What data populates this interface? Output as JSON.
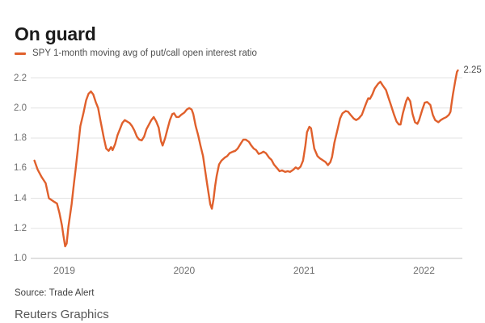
{
  "header": {
    "title": "On guard"
  },
  "legend": {
    "label": "SPY 1-month moving avg of put/call open interest ratio",
    "series_color": "#e0602c"
  },
  "footer": {
    "source": "Source: Trade Alert",
    "credit": "Reuters Graphics"
  },
  "colors": {
    "line": "#e0602c",
    "gridline": "#e3e3e3",
    "baseline": "#c2c2c2",
    "title_text": "#1b1b1b",
    "tick_text": "#6f6f6f"
  },
  "chart_data": {
    "type": "line",
    "title": "On guard",
    "xlabel": "",
    "ylabel": "",
    "grid": "horizontal",
    "legend_position": "top-left",
    "x_range": [
      2018.72,
      2022.32
    ],
    "x_ticks": [
      2019,
      2020,
      2021,
      2022
    ],
    "x_tick_labels": [
      "2019",
      "2020",
      "2021",
      "2022"
    ],
    "y_ticks": [
      1.0,
      1.2,
      1.4,
      1.6,
      1.8,
      2.0,
      2.2
    ],
    "y_tick_labels": [
      "1.0",
      "1.2",
      "1.4",
      "1.6",
      "1.8",
      "2.0",
      "2.2"
    ],
    "y_axis_min": 1.0,
    "y_axis_max": 2.2,
    "end_label": "2.25",
    "last_value": 2.25,
    "series": [
      {
        "name": "SPY 1-month moving avg of put/call open interest ratio",
        "color": "#e0602c",
        "points": [
          [
            2018.751,
            1.65
          ],
          [
            2018.778,
            1.59
          ],
          [
            2018.812,
            1.54
          ],
          [
            2018.845,
            1.5
          ],
          [
            2018.872,
            1.4
          ],
          [
            2018.899,
            1.385
          ],
          [
            2018.919,
            1.375
          ],
          [
            2018.939,
            1.365
          ],
          [
            2018.96,
            1.3
          ],
          [
            2018.98,
            1.22
          ],
          [
            2018.993,
            1.15
          ],
          [
            2019.007,
            1.08
          ],
          [
            2019.02,
            1.1
          ],
          [
            2019.034,
            1.21
          ],
          [
            2019.061,
            1.36
          ],
          [
            2019.081,
            1.5
          ],
          [
            2019.094,
            1.59
          ],
          [
            2019.114,
            1.73
          ],
          [
            2019.134,
            1.88
          ],
          [
            2019.161,
            1.97
          ],
          [
            2019.182,
            2.05
          ],
          [
            2019.202,
            2.095
          ],
          [
            2019.222,
            2.11
          ],
          [
            2019.242,
            2.09
          ],
          [
            2019.262,
            2.04
          ],
          [
            2019.282,
            2.0
          ],
          [
            2019.303,
            1.91
          ],
          [
            2019.33,
            1.8
          ],
          [
            2019.35,
            1.73
          ],
          [
            2019.37,
            1.715
          ],
          [
            2019.39,
            1.74
          ],
          [
            2019.403,
            1.72
          ],
          [
            2019.424,
            1.76
          ],
          [
            2019.444,
            1.82
          ],
          [
            2019.464,
            1.86
          ],
          [
            2019.484,
            1.9
          ],
          [
            2019.504,
            1.92
          ],
          [
            2019.524,
            1.91
          ],
          [
            2019.545,
            1.9
          ],
          [
            2019.565,
            1.88
          ],
          [
            2019.585,
            1.85
          ],
          [
            2019.605,
            1.81
          ],
          [
            2019.625,
            1.79
          ],
          [
            2019.646,
            1.785
          ],
          [
            2019.666,
            1.81
          ],
          [
            2019.686,
            1.86
          ],
          [
            2019.706,
            1.89
          ],
          [
            2019.726,
            1.92
          ],
          [
            2019.746,
            1.94
          ],
          [
            2019.767,
            1.91
          ],
          [
            2019.787,
            1.87
          ],
          [
            2019.807,
            1.78
          ],
          [
            2019.82,
            1.75
          ],
          [
            2019.841,
            1.8
          ],
          [
            2019.861,
            1.86
          ],
          [
            2019.881,
            1.92
          ],
          [
            2019.901,
            1.96
          ],
          [
            2019.915,
            1.965
          ],
          [
            2019.935,
            1.94
          ],
          [
            2019.955,
            1.94
          ],
          [
            2019.975,
            1.955
          ],
          [
            2020.002,
            1.97
          ],
          [
            2020.022,
            1.99
          ],
          [
            2020.042,
            2.0
          ],
          [
            2020.062,
            1.99
          ],
          [
            2020.076,
            1.96
          ],
          [
            2020.096,
            1.88
          ],
          [
            2020.116,
            1.82
          ],
          [
            2020.136,
            1.75
          ],
          [
            2020.157,
            1.68
          ],
          [
            2020.17,
            1.61
          ],
          [
            2020.19,
            1.5
          ],
          [
            2020.204,
            1.43
          ],
          [
            2020.217,
            1.36
          ],
          [
            2020.231,
            1.33
          ],
          [
            2020.244,
            1.39
          ],
          [
            2020.258,
            1.48
          ],
          [
            2020.271,
            1.55
          ],
          [
            2020.291,
            1.625
          ],
          [
            2020.311,
            1.65
          ],
          [
            2020.338,
            1.67
          ],
          [
            2020.358,
            1.68
          ],
          [
            2020.379,
            1.7
          ],
          [
            2020.406,
            1.71
          ],
          [
            2020.426,
            1.715
          ],
          [
            2020.446,
            1.73
          ],
          [
            2020.473,
            1.765
          ],
          [
            2020.493,
            1.79
          ],
          [
            2020.513,
            1.79
          ],
          [
            2020.54,
            1.775
          ],
          [
            2020.56,
            1.75
          ],
          [
            2020.58,
            1.73
          ],
          [
            2020.6,
            1.72
          ],
          [
            2020.621,
            1.695
          ],
          [
            2020.641,
            1.7
          ],
          [
            2020.661,
            1.71
          ],
          [
            2020.681,
            1.7
          ],
          [
            2020.708,
            1.67
          ],
          [
            2020.728,
            1.655
          ],
          [
            2020.748,
            1.625
          ],
          [
            2020.775,
            1.6
          ],
          [
            2020.795,
            1.58
          ],
          [
            2020.816,
            1.585
          ],
          [
            2020.843,
            1.575
          ],
          [
            2020.863,
            1.58
          ],
          [
            2020.883,
            1.575
          ],
          [
            2020.91,
            1.59
          ],
          [
            2020.93,
            1.605
          ],
          [
            2020.95,
            1.595
          ],
          [
            2020.97,
            1.61
          ],
          [
            2020.991,
            1.65
          ],
          [
            2021.011,
            1.75
          ],
          [
            2021.024,
            1.84
          ],
          [
            2021.044,
            1.875
          ],
          [
            2021.058,
            1.865
          ],
          [
            2021.071,
            1.8
          ],
          [
            2021.085,
            1.73
          ],
          [
            2021.112,
            1.68
          ],
          [
            2021.132,
            1.665
          ],
          [
            2021.152,
            1.655
          ],
          [
            2021.179,
            1.64
          ],
          [
            2021.199,
            1.62
          ],
          [
            2021.219,
            1.64
          ],
          [
            2021.233,
            1.675
          ],
          [
            2021.253,
            1.77
          ],
          [
            2021.28,
            1.86
          ],
          [
            2021.3,
            1.93
          ],
          [
            2021.32,
            1.965
          ],
          [
            2021.347,
            1.98
          ],
          [
            2021.367,
            1.975
          ],
          [
            2021.387,
            1.955
          ],
          [
            2021.414,
            1.93
          ],
          [
            2021.434,
            1.92
          ],
          [
            2021.455,
            1.93
          ],
          [
            2021.482,
            1.955
          ],
          [
            2021.502,
            2.0
          ],
          [
            2021.522,
            2.04
          ],
          [
            2021.535,
            2.065
          ],
          [
            2021.549,
            2.06
          ],
          [
            2021.569,
            2.09
          ],
          [
            2021.589,
            2.13
          ],
          [
            2021.616,
            2.16
          ],
          [
            2021.636,
            2.175
          ],
          [
            2021.656,
            2.15
          ],
          [
            2021.683,
            2.12
          ],
          [
            2021.703,
            2.07
          ],
          [
            2021.724,
            2.02
          ],
          [
            2021.75,
            1.955
          ],
          [
            2021.771,
            1.91
          ],
          [
            2021.791,
            1.89
          ],
          [
            2021.804,
            1.89
          ],
          [
            2021.824,
            1.965
          ],
          [
            2021.851,
            2.045
          ],
          [
            2021.865,
            2.07
          ],
          [
            2021.885,
            2.045
          ],
          [
            2021.905,
            1.96
          ],
          [
            2021.925,
            1.905
          ],
          [
            2021.945,
            1.895
          ],
          [
            2021.959,
            1.92
          ],
          [
            2021.986,
            1.99
          ],
          [
            2022.006,
            2.035
          ],
          [
            2022.026,
            2.04
          ],
          [
            2022.053,
            2.02
          ],
          [
            2022.073,
            1.955
          ],
          [
            2022.093,
            1.92
          ],
          [
            2022.12,
            1.905
          ],
          [
            2022.14,
            1.92
          ],
          [
            2022.161,
            1.93
          ],
          [
            2022.187,
            1.94
          ],
          [
            2022.208,
            1.955
          ],
          [
            2022.221,
            1.975
          ],
          [
            2022.228,
            2.02
          ],
          [
            2022.241,
            2.09
          ],
          [
            2022.261,
            2.18
          ],
          [
            2022.275,
            2.24
          ],
          [
            2022.282,
            2.25
          ]
        ]
      }
    ]
  }
}
